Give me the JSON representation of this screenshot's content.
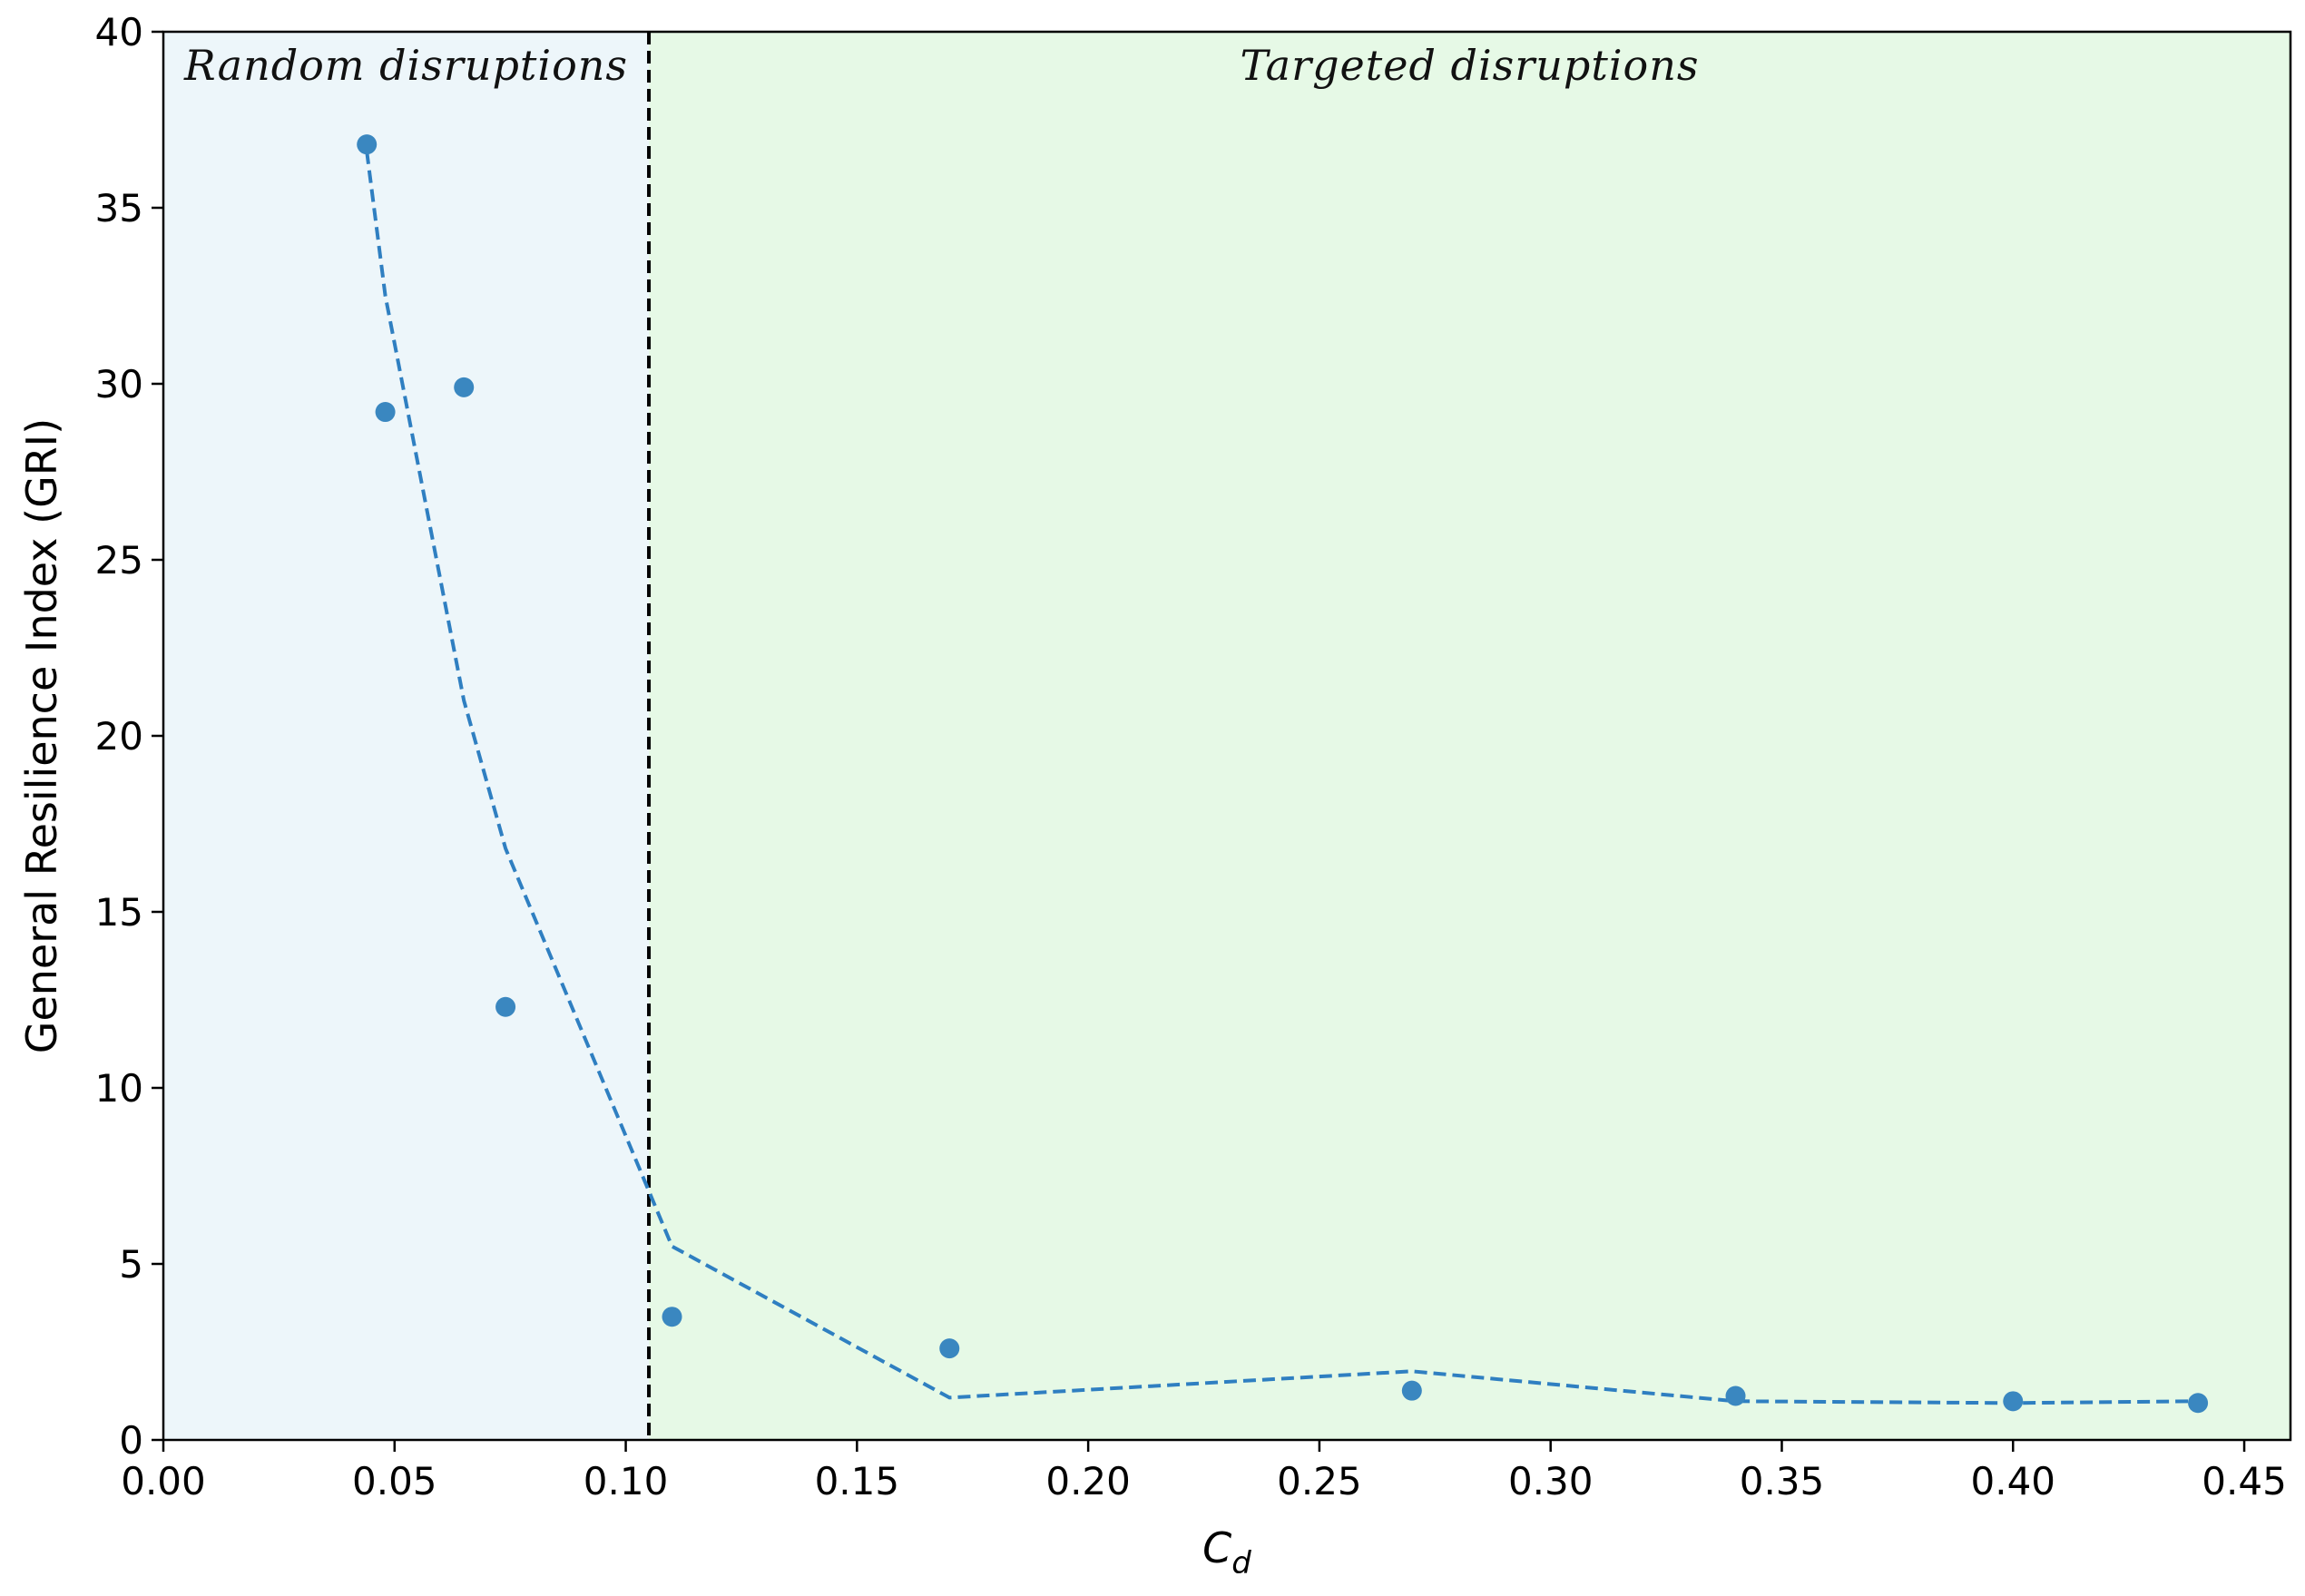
{
  "chart_data": {
    "type": "scatter",
    "xlabel": "C",
    "xlabel_subscript": "d",
    "ylabel": "General Resilience Index (GRI)",
    "xlim": [
      0.0,
      0.46
    ],
    "ylim": [
      0,
      40
    ],
    "x_ticks": [
      0.0,
      0.05,
      0.1,
      0.15,
      0.2,
      0.25,
      0.3,
      0.35,
      0.4,
      0.45
    ],
    "x_tick_labels": [
      "0.00",
      "0.05",
      "0.10",
      "0.15",
      "0.20",
      "0.25",
      "0.30",
      "0.35",
      "0.40",
      "0.45"
    ],
    "y_ticks": [
      0,
      5,
      10,
      15,
      20,
      25,
      30,
      35,
      40
    ],
    "y_tick_labels": [
      "0",
      "5",
      "10",
      "15",
      "20",
      "25",
      "30",
      "35",
      "40"
    ],
    "grid": false,
    "points": {
      "x": [
        0.044,
        0.048,
        0.065,
        0.074,
        0.11,
        0.17,
        0.27,
        0.34,
        0.4,
        0.44
      ],
      "y": [
        36.8,
        29.2,
        29.9,
        12.3,
        3.5,
        2.6,
        1.4,
        1.25,
        1.1,
        1.05
      ],
      "color": "#3a87c0"
    },
    "trend_line": {
      "style": "dashed",
      "color": "#2f7fc1",
      "x": [
        0.044,
        0.048,
        0.065,
        0.074,
        0.11,
        0.17,
        0.27,
        0.34,
        0.4,
        0.44
      ],
      "y": [
        36.6,
        32.5,
        21.0,
        16.8,
        5.5,
        1.2,
        1.95,
        1.1,
        1.05,
        1.1
      ]
    },
    "threshold": {
      "x": 0.105,
      "style": "dashed",
      "color": "#000000"
    },
    "regions": [
      {
        "label": "Random disruptions",
        "x_range": [
          0.0,
          0.105
        ],
        "color": "#edf6fa"
      },
      {
        "label": "Targeted disruptions",
        "x_range": [
          0.105,
          0.46
        ],
        "color": "#e6f9e6"
      }
    ]
  }
}
